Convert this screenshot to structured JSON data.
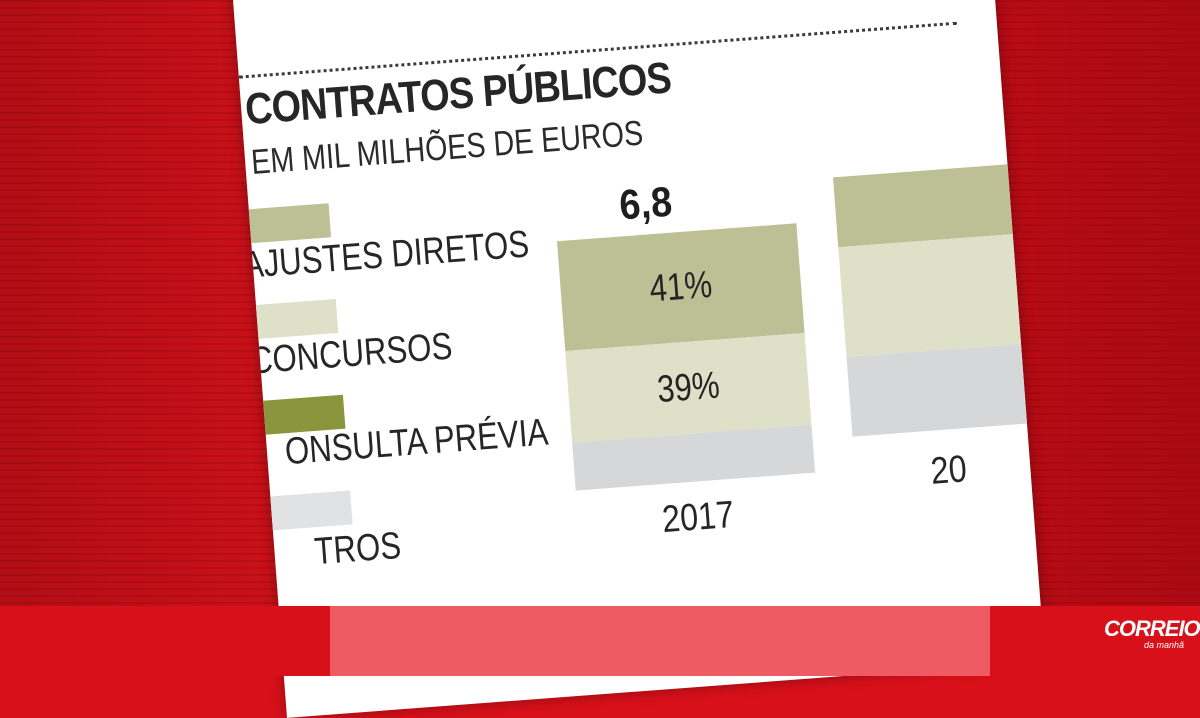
{
  "chart_data": {
    "type": "bar",
    "title": "CONTRATOS PÚBLICOS",
    "subtitle": "EM MIL MILHÕES DE EUROS",
    "categories": [
      "2017",
      "20"
    ],
    "totals": [
      "6,8",
      ""
    ],
    "series": [
      {
        "name": "AJUSTES DIRETOS",
        "color": "#bcc094",
        "values": [
          41,
          null
        ],
        "labels": [
          "41%",
          ""
        ]
      },
      {
        "name": "CONCURSOS",
        "color": "#dfe0c8",
        "values": [
          39,
          null
        ],
        "labels": [
          "39%",
          ""
        ]
      },
      {
        "name": "CONSULTA PRÉVIA",
        "color": "#8a963c",
        "values": [
          null,
          null
        ],
        "labels": [
          "",
          ""
        ]
      },
      {
        "name": "OUTROS",
        "color": "#d6d7d9",
        "values": [
          null,
          null
        ],
        "labels": [
          "",
          ""
        ]
      }
    ]
  },
  "legend": {
    "items": [
      {
        "label": "AJUSTES DIRETOS",
        "color": "#bcc094"
      },
      {
        "label": "CONCURSOS",
        "color": "#dfe0c8"
      },
      {
        "label": "ONSULTA PRÉVIA",
        "color": "#8a963c"
      },
      {
        "label": "TROS",
        "color": "#e1e2e4"
      }
    ]
  },
  "bars": [
    {
      "year": "2017",
      "total": "6,8",
      "seg1": "41%",
      "seg2": "39%"
    },
    {
      "year": "20",
      "total": "",
      "seg1": "",
      "seg2": ""
    }
  ],
  "brand": {
    "name": "CORREIO",
    "sub": "da manhã"
  },
  "colors": {
    "background": "#d8101a",
    "band": "#ef5b63"
  }
}
